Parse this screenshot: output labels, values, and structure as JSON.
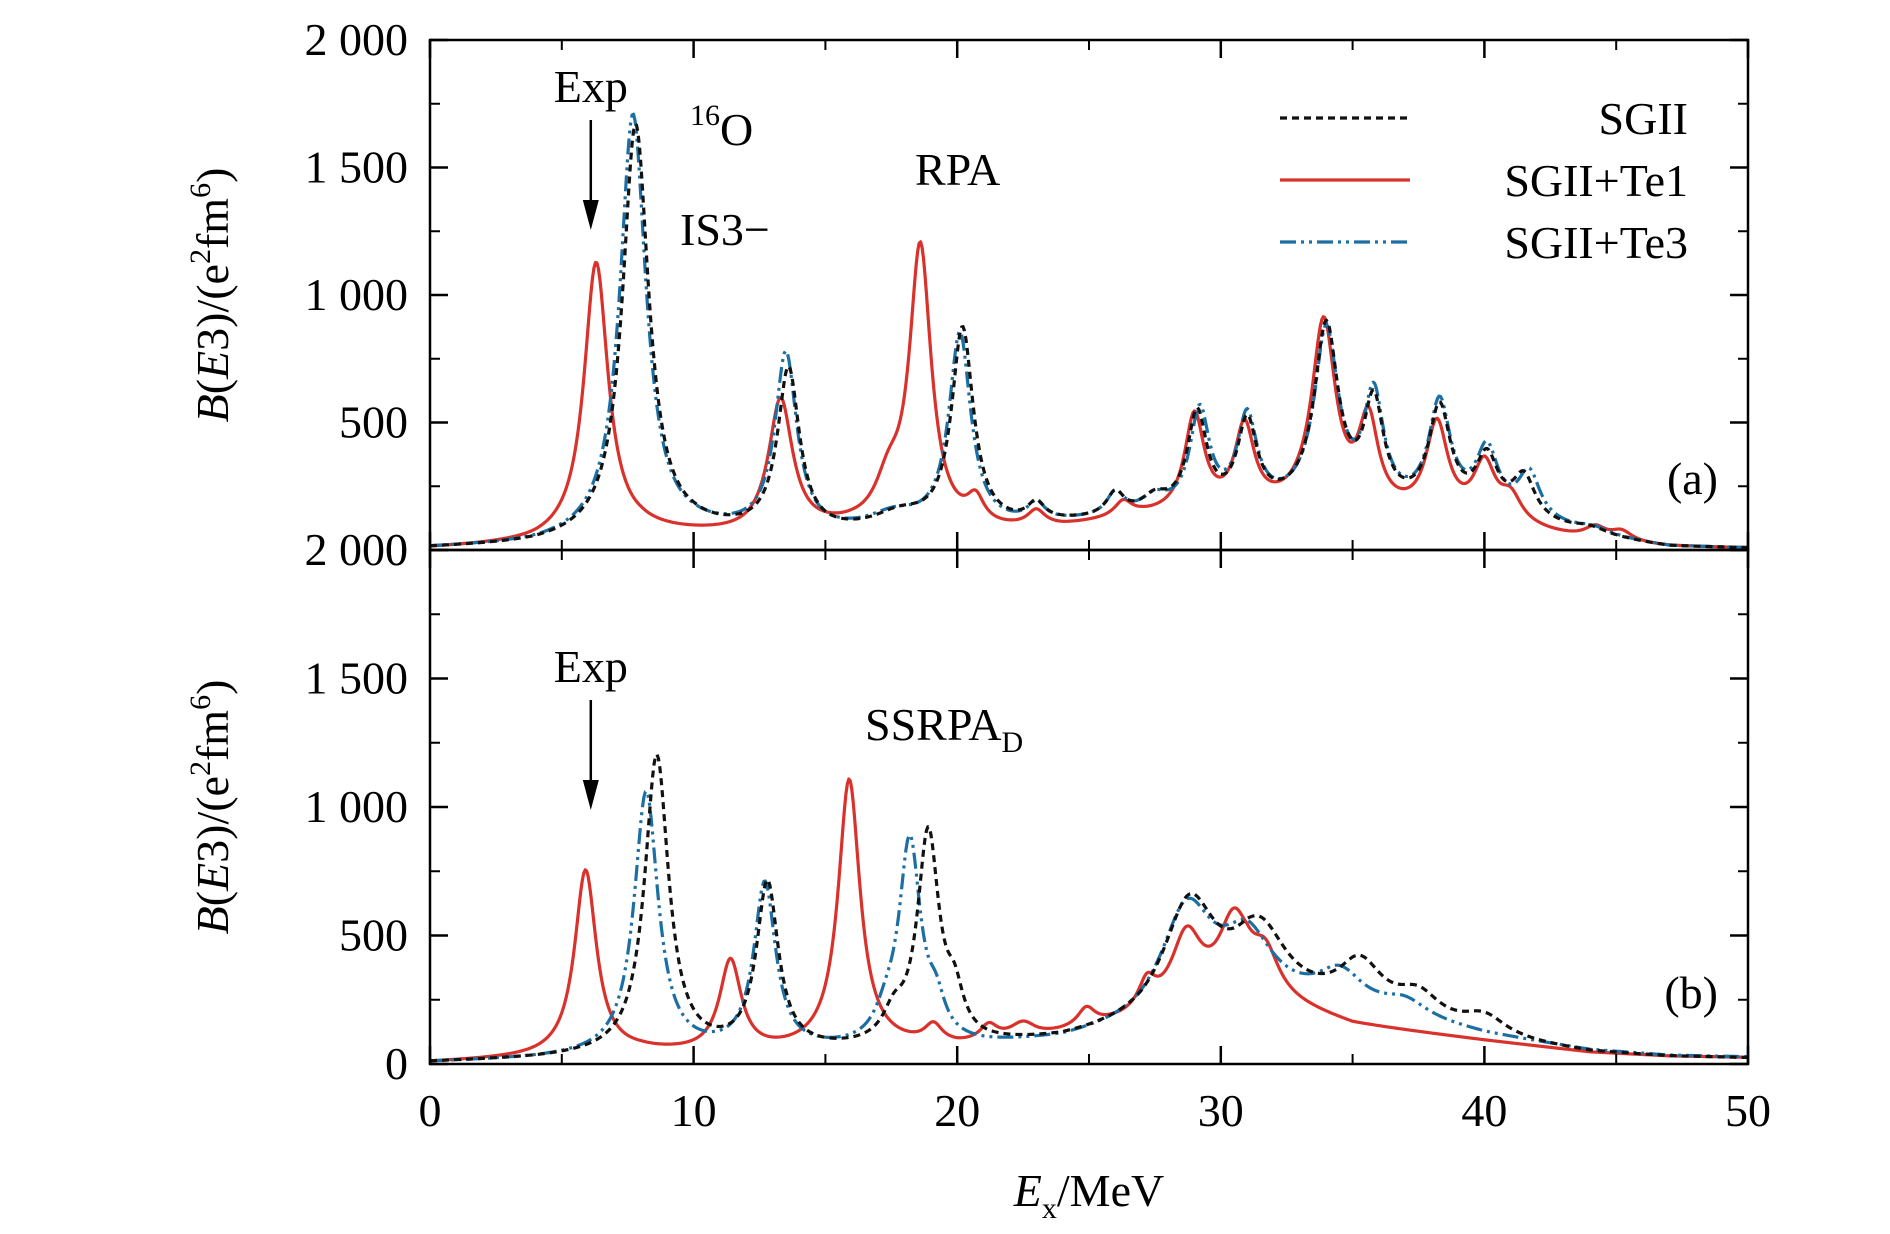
{
  "colors": {
    "SGII": "#111111",
    "SGII+Te1": "#d9312b",
    "SGII+Te3": "#1c6fa3",
    "axis": "#000000"
  },
  "chart_data": {
    "type": "line",
    "x_label_parts": {
      "italic": "E",
      "sub": "x",
      "rest": "/MeV"
    },
    "y_label_parts": {
      "pre": "B(",
      "italic": "E",
      "mid": "3)/(e",
      "sup1": "2",
      "fm": "fm",
      "sup2": "6",
      "post": ")"
    },
    "xlim": [
      0,
      50
    ],
    "ylim": [
      0,
      2000
    ],
    "x_ticks": [
      0,
      10,
      20,
      30,
      40,
      50
    ],
    "x_tick_labels": [
      "0",
      "10",
      "20",
      "30",
      "40",
      "50"
    ],
    "y_ticks": [
      0,
      500,
      1000,
      1500,
      2000
    ],
    "y_tick_labels": [
      "0",
      "500",
      "1 000",
      "1 500",
      "2 000"
    ],
    "legend": {
      "placement": "top-right",
      "entries": [
        {
          "name": "SGII",
          "style": "dotted"
        },
        {
          "name": "SGII+Te1",
          "style": "solid"
        },
        {
          "name": "SGII+Te3",
          "style": "dash-dot-dot"
        }
      ]
    },
    "panels": [
      {
        "id": "a",
        "label": "(a)",
        "method": "RPA",
        "nucleus_sup": "16",
        "nucleus": "O",
        "mode": "IS3−",
        "exp_label": "Exp",
        "exp_energy": 6.1,
        "series": [
          {
            "name": "SGII",
            "peaks": [
              [
                7.8,
                1620,
                0.6
              ],
              [
                13.6,
                640,
                0.5
              ],
              [
                17.8,
                60,
                1.2
              ],
              [
                20.2,
                780,
                0.5
              ],
              [
                23.0,
                70,
                0.4
              ],
              [
                26.0,
                90,
                0.4
              ],
              [
                27.5,
                60,
                0.6
              ],
              [
                29.1,
                380,
                0.45
              ],
              [
                31.0,
                330,
                0.45
              ],
              [
                34.0,
                700,
                0.55
              ],
              [
                35.8,
                390,
                0.45
              ],
              [
                38.3,
                390,
                0.5
              ],
              [
                40.1,
                200,
                0.5
              ],
              [
                41.5,
                160,
                0.5
              ],
              [
                44.0,
                30,
                0.8
              ]
            ],
            "base": [
              [
                0,
                5
              ],
              [
                4,
                15
              ],
              [
                6,
                30
              ],
              [
                10,
                60
              ],
              [
                15,
                50
              ],
              [
                22,
                80
              ],
              [
                27,
                120
              ],
              [
                33,
                160
              ],
              [
                40,
                140
              ],
              [
                44,
                50
              ],
              [
                47,
                10
              ],
              [
                50,
                5
              ]
            ]
          },
          {
            "name": "SGII+Te1",
            "peaks": [
              [
                6.3,
                1080,
                0.55
              ],
              [
                13.3,
                520,
                0.55
              ],
              [
                17.4,
                150,
                0.6
              ],
              [
                18.6,
                1100,
                0.5
              ],
              [
                20.7,
                100,
                0.4
              ],
              [
                23.0,
                60,
                0.4
              ],
              [
                26.3,
                60,
                0.4
              ],
              [
                29.0,
                380,
                0.45
              ],
              [
                30.9,
                320,
                0.45
              ],
              [
                33.9,
                730,
                0.55
              ],
              [
                35.6,
                340,
                0.45
              ],
              [
                38.2,
                360,
                0.5
              ],
              [
                40.0,
                210,
                0.5
              ],
              [
                41.0,
                100,
                0.5
              ],
              [
                44.2,
                50,
                0.5
              ],
              [
                45.2,
                40,
                0.5
              ]
            ],
            "base": [
              [
                0,
                5
              ],
              [
                4,
                20
              ],
              [
                8,
                60
              ],
              [
                12,
                50
              ],
              [
                16,
                70
              ],
              [
                21,
                60
              ],
              [
                24,
                80
              ],
              [
                27,
                120
              ],
              [
                33,
                150
              ],
              [
                40,
                100
              ],
              [
                44,
                30
              ],
              [
                47,
                10
              ],
              [
                50,
                5
              ]
            ]
          },
          {
            "name": "SGII+Te3",
            "peaks": [
              [
                7.7,
                1660,
                0.6
              ],
              [
                13.5,
                700,
                0.5
              ],
              [
                17.6,
                60,
                1.2
              ],
              [
                20.1,
                760,
                0.5
              ],
              [
                23.0,
                70,
                0.4
              ],
              [
                26.0,
                90,
                0.4
              ],
              [
                27.5,
                60,
                0.6
              ],
              [
                29.2,
                390,
                0.45
              ],
              [
                31.0,
                350,
                0.45
              ],
              [
                34.0,
                680,
                0.55
              ],
              [
                35.8,
                420,
                0.45
              ],
              [
                38.3,
                410,
                0.5
              ],
              [
                40.1,
                230,
                0.5
              ],
              [
                41.7,
                180,
                0.5
              ],
              [
                44.1,
                30,
                0.8
              ]
            ],
            "base": [
              [
                0,
                5
              ],
              [
                4,
                15
              ],
              [
                6,
                30
              ],
              [
                10,
                60
              ],
              [
                15,
                50
              ],
              [
                22,
                80
              ],
              [
                27,
                120
              ],
              [
                33,
                160
              ],
              [
                40,
                140
              ],
              [
                44,
                50
              ],
              [
                47,
                10
              ],
              [
                50,
                5
              ]
            ]
          }
        ]
      },
      {
        "id": "b",
        "label": "(b)",
        "method_main": "SSRPA",
        "method_sub": "D",
        "exp_label": "Exp",
        "exp_energy": 6.1,
        "series": [
          {
            "name": "SGII",
            "peaks": [
              [
                8.6,
                1160,
                0.55
              ],
              [
                12.8,
                650,
                0.5
              ],
              [
                17.6,
                100,
                0.5
              ],
              [
                18.9,
                820,
                0.5
              ],
              [
                19.9,
                150,
                0.4
              ],
              [
                28.8,
                430,
                1.2
              ],
              [
                31.5,
                250,
                1.2
              ],
              [
                35.3,
                170,
                1.0
              ],
              [
                37.5,
                100,
                1.0
              ],
              [
                40.0,
                80,
                1.0
              ]
            ],
            "base": [
              [
                0,
                5
              ],
              [
                4,
                15
              ],
              [
                8,
                30
              ],
              [
                15,
                40
              ],
              [
                21,
                60
              ],
              [
                24,
                80
              ],
              [
                27,
                130
              ],
              [
                31,
                240
              ],
              [
                35,
                200
              ],
              [
                40,
                90
              ],
              [
                44,
                40
              ],
              [
                47,
                25
              ],
              [
                50,
                20
              ]
            ]
          },
          {
            "name": "SGII+Te1",
            "peaks": [
              [
                5.9,
                720,
                0.5
              ],
              [
                11.4,
                360,
                0.5
              ],
              [
                15.9,
                1040,
                0.5
              ],
              [
                19.1,
                70,
                0.4
              ],
              [
                21.2,
                60,
                0.4
              ],
              [
                22.5,
                60,
                0.6
              ],
              [
                24.9,
                70,
                0.4
              ],
              [
                27.2,
                110,
                0.4
              ],
              [
                28.7,
                270,
                0.7
              ],
              [
                30.5,
                280,
                0.7
              ],
              [
                31.7,
                150,
                0.6
              ]
            ],
            "base": [
              [
                0,
                5
              ],
              [
                4,
                20
              ],
              [
                8,
                40
              ],
              [
                12,
                30
              ],
              [
                16,
                60
              ],
              [
                20,
                60
              ],
              [
                23,
                90
              ],
              [
                27,
                170
              ],
              [
                31,
                270
              ],
              [
                35,
                150
              ],
              [
                40,
                90
              ],
              [
                44,
                45
              ],
              [
                47,
                30
              ],
              [
                50,
                25
              ]
            ]
          },
          {
            "name": "SGII+Te3",
            "peaks": [
              [
                8.2,
                1020,
                0.55
              ],
              [
                12.7,
                650,
                0.5
              ],
              [
                17.3,
                80,
                0.5
              ],
              [
                18.2,
                790,
                0.5
              ],
              [
                19.2,
                120,
                0.4
              ],
              [
                28.7,
                410,
                1.2
              ],
              [
                31.0,
                220,
                1.2
              ],
              [
                34.5,
                120,
                1.0
              ],
              [
                37.0,
                60,
                1.0
              ]
            ],
            "base": [
              [
                0,
                5
              ],
              [
                4,
                15
              ],
              [
                8,
                30
              ],
              [
                15,
                40
              ],
              [
                21,
                60
              ],
              [
                24,
                80
              ],
              [
                27,
                130
              ],
              [
                31,
                240
              ],
              [
                35,
                210
              ],
              [
                40,
                110
              ],
              [
                44,
                50
              ],
              [
                47,
                30
              ],
              [
                50,
                25
              ]
            ]
          }
        ]
      }
    ]
  }
}
